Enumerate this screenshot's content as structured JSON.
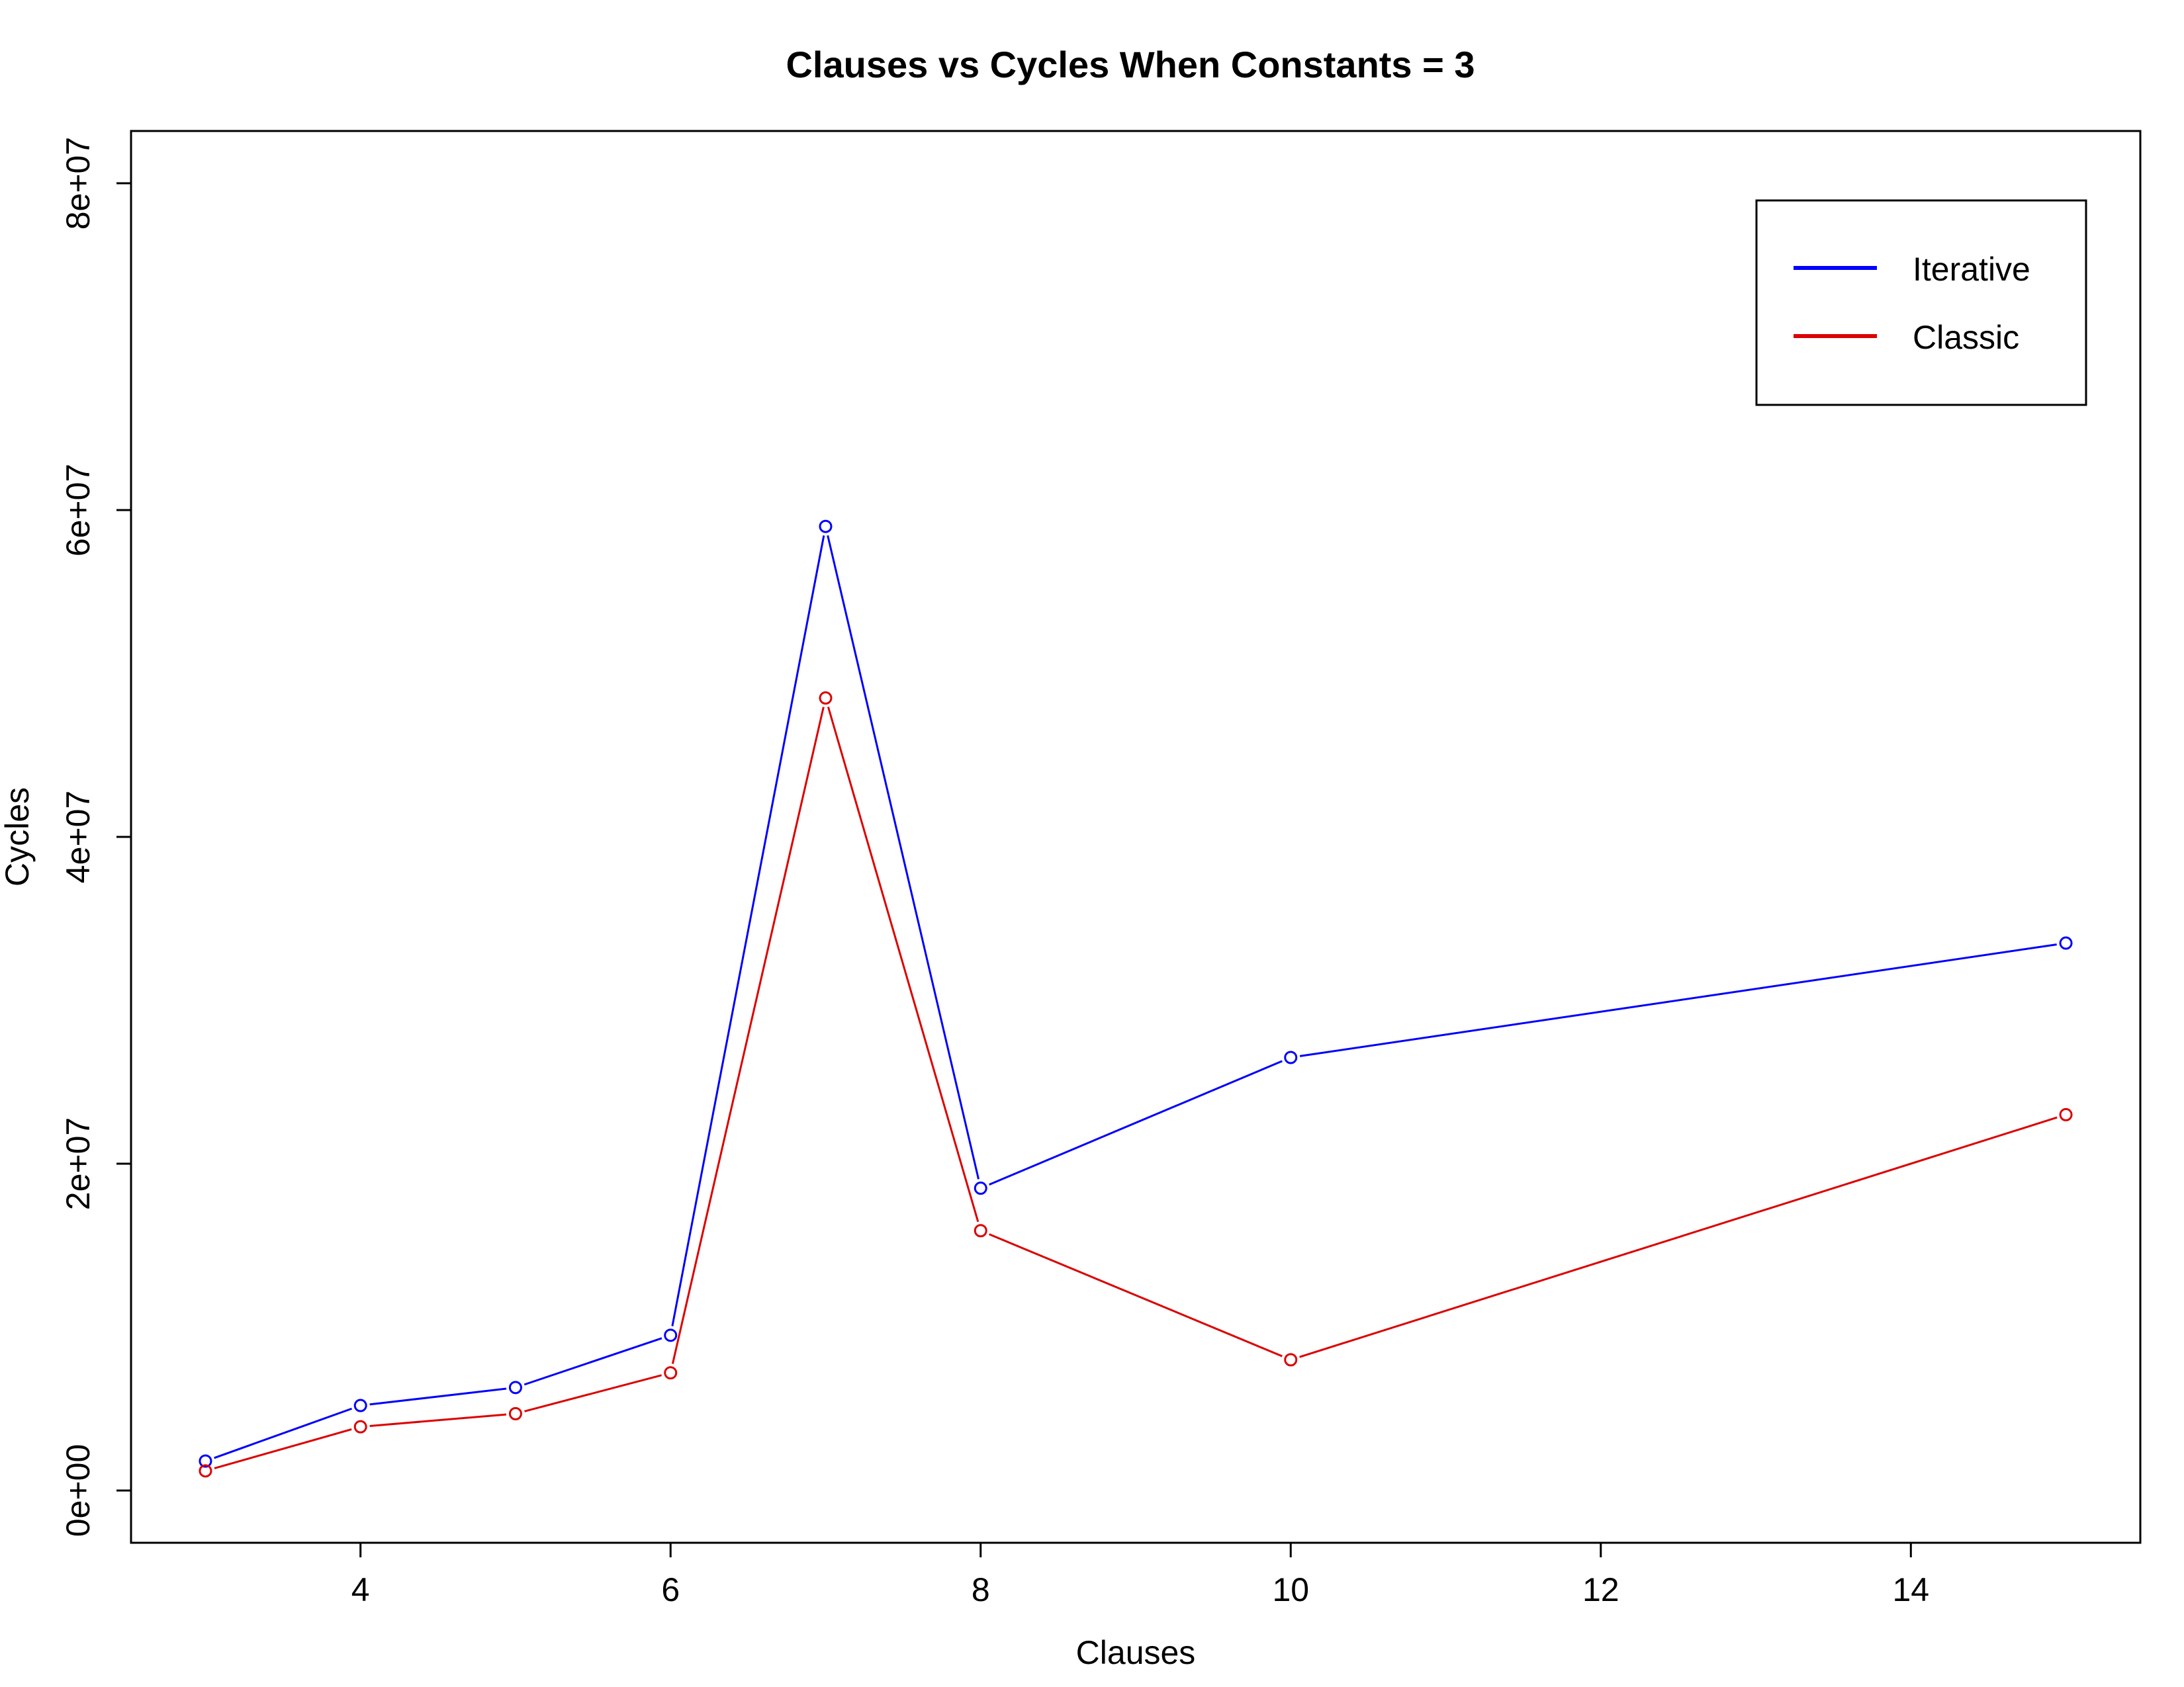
{
  "chart_data": {
    "type": "line",
    "title": "Clauses vs Cycles When Constants = 3",
    "xlabel": "Clauses",
    "ylabel": "Cycles",
    "x": [
      3,
      4,
      5,
      6,
      7,
      8,
      10,
      15
    ],
    "series": [
      {
        "name": "Iterative",
        "color": "#0000ff",
        "values": [
          1800000,
          5200000,
          6300000,
          9500000,
          59000000,
          18500000,
          26500000,
          33500000
        ]
      },
      {
        "name": "Classic",
        "color": "#dd0000",
        "values": [
          1200000,
          3900000,
          4700000,
          7200000,
          48500000,
          15900000,
          8000000,
          23000000
        ]
      }
    ],
    "xlim": [
      2.52,
      15.48
    ],
    "ylim": [
      -3200000,
      83200000
    ],
    "x_ticks": [
      {
        "value": 4,
        "label": "4"
      },
      {
        "value": 6,
        "label": "6"
      },
      {
        "value": 8,
        "label": "8"
      },
      {
        "value": 10,
        "label": "10"
      },
      {
        "value": 12,
        "label": "12"
      },
      {
        "value": 14,
        "label": "14"
      }
    ],
    "y_ticks": [
      {
        "value": 0,
        "label": "0e+00"
      },
      {
        "value": 20000000,
        "label": "2e+07"
      },
      {
        "value": 40000000,
        "label": "4e+07"
      },
      {
        "value": 60000000,
        "label": "6e+07"
      },
      {
        "value": 80000000,
        "label": "8e+07"
      }
    ],
    "marker": "open-circle",
    "grid": false,
    "legend_position": "top-right"
  }
}
